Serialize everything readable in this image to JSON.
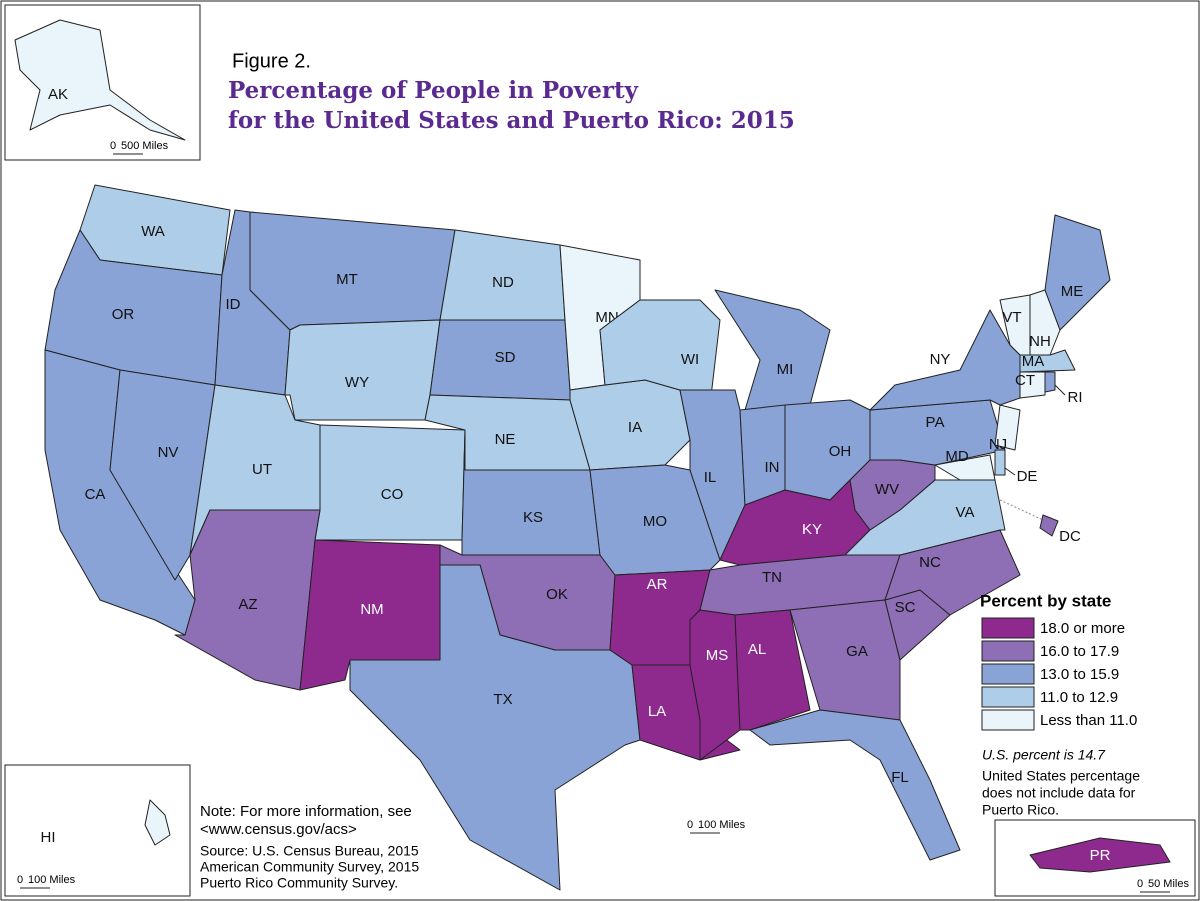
{
  "header": {
    "figure": "Figure 2.",
    "title": [
      "Percentage of People in Poverty",
      "for the United States and Puerto Rico: 2015"
    ]
  },
  "states": [
    {
      "label": "WA",
      "color": "#aecde9"
    },
    {
      "label": "OR",
      "color": "#8aa3d6"
    },
    {
      "label": "CA",
      "color": "#8aa3d6"
    },
    {
      "label": "NV",
      "color": "#8aa3d6"
    },
    {
      "label": "ID",
      "color": "#8aa3d6"
    },
    {
      "label": "MT",
      "color": "#8aa3d6"
    },
    {
      "label": "WY",
      "color": "#aecde9"
    },
    {
      "label": "UT",
      "color": "#aecde9"
    },
    {
      "label": "CO",
      "color": "#aecde9"
    },
    {
      "label": "AZ",
      "color": "#8e6fb5"
    },
    {
      "label": "NM",
      "color": "#8e2a8e"
    },
    {
      "label": "ND",
      "color": "#aecde9"
    },
    {
      "label": "SD",
      "color": "#8aa3d6"
    },
    {
      "label": "NE",
      "color": "#aecde9"
    },
    {
      "label": "KS",
      "color": "#8aa3d6"
    },
    {
      "label": "OK",
      "color": "#8e6fb5"
    },
    {
      "label": "TX",
      "color": "#8aa3d6"
    },
    {
      "label": "MN",
      "color": "#e9f4fb"
    },
    {
      "label": "IA",
      "color": "#aecde9"
    },
    {
      "label": "MO",
      "color": "#8aa3d6"
    },
    {
      "label": "AR",
      "color": "#8e2a8e"
    },
    {
      "label": "LA",
      "color": "#8e2a8e"
    },
    {
      "label": "WI",
      "color": "#aecde9"
    },
    {
      "label": "IL",
      "color": "#8aa3d6"
    },
    {
      "label": "MI",
      "color": "#8aa3d6"
    },
    {
      "label": "IN",
      "color": "#8aa3d6"
    },
    {
      "label": "OH",
      "color": "#8aa3d6"
    },
    {
      "label": "KY",
      "color": "#8e2a8e"
    },
    {
      "label": "TN",
      "color": "#8e6fb5"
    },
    {
      "label": "MS",
      "color": "#8e2a8e"
    },
    {
      "label": "AL",
      "color": "#8e2a8e"
    },
    {
      "label": "GA",
      "color": "#8e6fb5"
    },
    {
      "label": "FL",
      "color": "#8aa3d6"
    },
    {
      "label": "SC",
      "color": "#8e6fb5"
    },
    {
      "label": "NC",
      "color": "#8e6fb5"
    },
    {
      "label": "VA",
      "color": "#aecde9"
    },
    {
      "label": "WV",
      "color": "#8e6fb5"
    },
    {
      "label": "PA",
      "color": "#8aa3d6"
    },
    {
      "label": "NY",
      "color": "#8aa3d6"
    },
    {
      "label": "VT",
      "color": "#e9f4fb"
    },
    {
      "label": "NH",
      "color": "#e9f4fb"
    },
    {
      "label": "ME",
      "color": "#8aa3d6"
    },
    {
      "label": "MA",
      "color": "#aecde9"
    },
    {
      "label": "CT",
      "color": "#e9f4fb"
    },
    {
      "label": "RI",
      "color": "#8aa3d6"
    },
    {
      "label": "NJ",
      "color": "#e9f4fb"
    },
    {
      "label": "DE",
      "color": "#aecde9"
    },
    {
      "label": "MD",
      "color": "#e9f4fb"
    },
    {
      "label": "DC",
      "color": "#8e6fb5"
    },
    {
      "label": "AK",
      "color": "#e9f4fb"
    },
    {
      "label": "HI",
      "color": "#e9f4fb"
    },
    {
      "label": "PR",
      "color": "#8e2a8e"
    }
  ],
  "legend": {
    "title": "Percent by state",
    "items": [
      {
        "label": "18.0 or more",
        "color": "#8e2a8e"
      },
      {
        "label": "16.0 to 17.9",
        "color": "#8e6fb5"
      },
      {
        "label": "13.0 to 15.9",
        "color": "#8aa3d6"
      },
      {
        "label": "11.0 to 12.9",
        "color": "#aecde9"
      },
      {
        "label": "Less than 11.0",
        "color": "#e9f4fb"
      }
    ],
    "us_percent": "U.S. percent is 14.7",
    "note": [
      "United States percentage",
      "does not include data for",
      "Puerto Rico."
    ]
  },
  "note": [
    "Note: For more information, see",
    "<www.census.gov/acs>"
  ],
  "source": [
    "Source: U.S. Census Bureau, 2015",
    "American Community Survey, 2015",
    "Puerto Rico Community Survey."
  ],
  "scales": [
    {
      "zero": "0",
      "label": "100 Miles"
    },
    {
      "zero": "0",
      "label": "500 Miles"
    },
    {
      "zero": "0",
      "label": "100 Miles"
    },
    {
      "zero": "0",
      "label": "50 Miles"
    }
  ]
}
